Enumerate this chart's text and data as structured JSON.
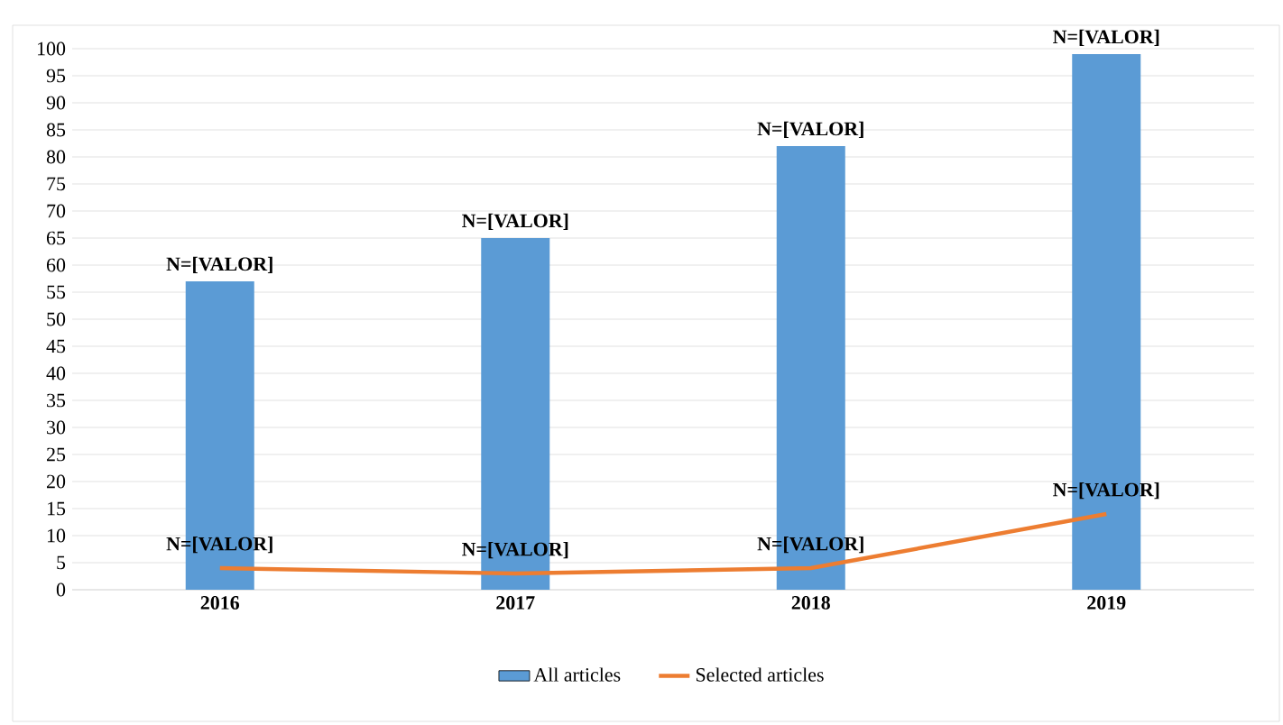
{
  "chart_data": {
    "type": "bar",
    "categories": [
      "2016",
      "2017",
      "2018",
      "2019"
    ],
    "series": [
      {
        "name": "All articles",
        "color": "#5b9bd5",
        "values": [
          57,
          65,
          82,
          99
        ],
        "value_labels": [
          "N=[VALOR]",
          "N=[VALOR]",
          "N=[VALOR]",
          "N=[VALOR]"
        ]
      },
      {
        "name": "Selected articles",
        "type": "line",
        "color": "#ed7d31",
        "values": [
          4,
          3,
          4,
          14
        ],
        "value_labels": [
          "N=[VALOR]",
          "N=[VALOR]",
          "N=[VALOR]",
          "N=[VALOR]"
        ]
      }
    ],
    "ylim": [
      0,
      100
    ],
    "yticks": [
      0,
      5,
      10,
      15,
      20,
      25,
      30,
      35,
      40,
      45,
      50,
      55,
      60,
      65,
      70,
      75,
      80,
      85,
      90,
      95,
      100
    ],
    "grid": "y",
    "legend": "bottom",
    "marker": "none",
    "line_style": "solid"
  }
}
